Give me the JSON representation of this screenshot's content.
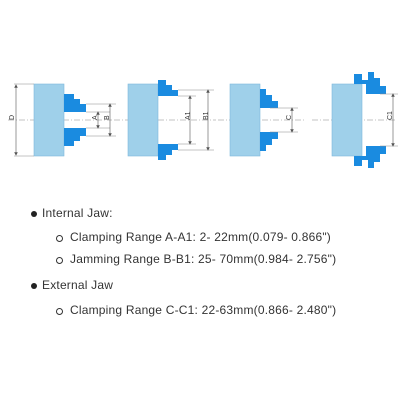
{
  "diagram": {
    "labels": {
      "d": "D",
      "a": "A",
      "b": "B",
      "a1": "A1",
      "b1": "B1",
      "c": "C",
      "c1": "C1"
    },
    "colors": {
      "body": "#9fd0ea",
      "body_edge": "#7fb8dc",
      "jaw": "#1a8be0",
      "jaw_dark": "#1570c0",
      "dim": "#555555",
      "axis": "#666666"
    }
  },
  "specs": {
    "internal_heading": "Internal Jaw:",
    "internal_items": [
      "Clamping Range A-A1: 2- 22mm(0.079- 0.866\")",
      "Jamming Range B-B1: 25- 70mm(0.984- 2.756\")"
    ],
    "external_heading": "External Jaw",
    "external_items": [
      "Clamping Range C-C1: 22-63mm(0.866- 2.480\")"
    ]
  }
}
